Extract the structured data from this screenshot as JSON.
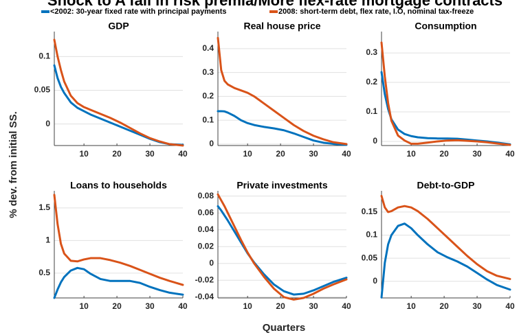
{
  "title": "Shock to A fall in risk premia/More flex-rate mortgage contracts",
  "y_label": "% dev. from initial SS.",
  "x_label": "Quarters",
  "chart_data": [
    {
      "type": "line",
      "title": "GDP",
      "x": [
        1,
        2,
        3,
        4,
        6,
        8,
        10,
        12,
        15,
        18,
        21,
        24,
        27,
        30,
        33,
        36,
        40
      ],
      "xlim": [
        1,
        40
      ],
      "xticks": [
        10,
        20,
        30,
        40
      ],
      "ylim": [
        -0.032,
        0.133
      ],
      "yticks": [
        0,
        0.05,
        0.1
      ],
      "grid": true,
      "series": [
        {
          "name": "<2002: 30-year fixed rate with principal payments",
          "color": "#0072bd",
          "values": [
            0.087,
            0.068,
            0.055,
            0.046,
            0.032,
            0.024,
            0.019,
            0.014,
            0.008,
            0.002,
            -0.004,
            -0.01,
            -0.016,
            -0.022,
            -0.027,
            -0.03,
            -0.031
          ]
        },
        {
          "name": "2008: short-term debt, flex rate, I.O, nominal tax-freeze",
          "color": "#d95319",
          "values": [
            0.125,
            0.1,
            0.08,
            0.063,
            0.042,
            0.031,
            0.025,
            0.021,
            0.015,
            0.009,
            0.002,
            -0.006,
            -0.014,
            -0.021,
            -0.026,
            -0.03,
            -0.032
          ]
        }
      ]
    },
    {
      "type": "line",
      "title": "Real house price",
      "x": [
        1,
        2,
        3,
        4,
        6,
        8,
        10,
        12,
        15,
        18,
        21,
        24,
        27,
        30,
        33,
        36,
        40
      ],
      "xlim": [
        1,
        40
      ],
      "xticks": [
        10,
        20,
        30,
        40
      ],
      "ylim": [
        -0.006,
        0.46
      ],
      "yticks": [
        0,
        0.1,
        0.2,
        0.3,
        0.4
      ],
      "grid": true,
      "series": [
        {
          "name": "<2002: 30-year fixed rate with principal payments",
          "color": "#0072bd",
          "values": [
            0.138,
            0.138,
            0.137,
            0.132,
            0.118,
            0.1,
            0.088,
            0.08,
            0.072,
            0.066,
            0.058,
            0.045,
            0.03,
            0.015,
            0.006,
            0.001,
            -0.003
          ]
        },
        {
          "name": "2008: short-term debt, flex rate, I.O, nominal tax-freeze",
          "color": "#d95319",
          "values": [
            0.445,
            0.31,
            0.265,
            0.25,
            0.235,
            0.225,
            0.215,
            0.2,
            0.17,
            0.14,
            0.11,
            0.08,
            0.055,
            0.035,
            0.02,
            0.008,
            0.0
          ]
        }
      ]
    },
    {
      "type": "line",
      "title": "Consumption",
      "x": [
        1,
        2,
        3,
        4,
        6,
        8,
        10,
        12,
        15,
        18,
        21,
        24,
        27,
        30,
        33,
        36,
        40
      ],
      "xlim": [
        1,
        40
      ],
      "xticks": [
        10,
        20,
        30,
        40
      ],
      "ylim": [
        -0.014,
        0.363
      ],
      "yticks": [
        0,
        0.1,
        0.2,
        0.3
      ],
      "grid": true,
      "series": [
        {
          "name": "<2002: 30-year fixed rate with principal payments",
          "color": "#0072bd",
          "values": [
            0.235,
            0.16,
            0.11,
            0.075,
            0.04,
            0.025,
            0.018,
            0.014,
            0.011,
            0.01,
            0.01,
            0.009,
            0.006,
            0.003,
            0.0,
            -0.004,
            -0.01
          ]
        },
        {
          "name": "2008: short-term debt, flex rate, I.O, nominal tax-freeze",
          "color": "#d95319",
          "values": [
            0.335,
            0.22,
            0.13,
            0.07,
            0.02,
            0.003,
            -0.008,
            -0.008,
            -0.004,
            0.0,
            0.003,
            0.004,
            0.002,
            0.0,
            -0.003,
            -0.007,
            -0.012
          ]
        }
      ]
    },
    {
      "type": "line",
      "title": "Loans to households",
      "x": [
        1,
        2,
        3,
        4,
        6,
        8,
        10,
        12,
        15,
        18,
        21,
        24,
        27,
        30,
        33,
        36,
        40
      ],
      "xlim": [
        1,
        40
      ],
      "xticks": [
        10,
        20,
        30,
        40
      ],
      "ylim": [
        0.12,
        1.72
      ],
      "yticks": [
        0.5,
        1,
        1.5
      ],
      "grid": true,
      "series": [
        {
          "name": "<2002: 30-year fixed rate with principal payments",
          "color": "#0072bd",
          "values": [
            0.12,
            0.25,
            0.36,
            0.44,
            0.54,
            0.58,
            0.56,
            0.49,
            0.41,
            0.38,
            0.38,
            0.38,
            0.35,
            0.29,
            0.24,
            0.2,
            0.17
          ]
        },
        {
          "name": "2008: short-term debt, flex rate, I.O, nominal tax-freeze",
          "color": "#d95319",
          "values": [
            1.7,
            1.25,
            0.95,
            0.8,
            0.69,
            0.68,
            0.71,
            0.73,
            0.73,
            0.7,
            0.66,
            0.61,
            0.55,
            0.49,
            0.43,
            0.38,
            0.32
          ]
        }
      ]
    },
    {
      "type": "line",
      "title": "Private investments",
      "x": [
        1,
        2,
        3,
        4,
        6,
        8,
        10,
        12,
        15,
        18,
        21,
        24,
        27,
        30,
        33,
        36,
        40
      ],
      "xlim": [
        1,
        40
      ],
      "xticks": [
        10,
        20,
        30,
        40
      ],
      "ylim": [
        -0.041,
        0.083
      ],
      "yticks": [
        -0.04,
        -0.02,
        0,
        0.02,
        0.04,
        0.06,
        0.08
      ],
      "grid": true,
      "series": [
        {
          "name": "<2002: 30-year fixed rate with principal payments",
          "color": "#0072bd",
          "values": [
            0.068,
            0.063,
            0.057,
            0.051,
            0.038,
            0.025,
            0.012,
            0.001,
            -0.013,
            -0.025,
            -0.033,
            -0.037,
            -0.036,
            -0.032,
            -0.027,
            -0.022,
            -0.017
          ]
        },
        {
          "name": "2008: short-term debt, flex rate, I.O, nominal tax-freeze",
          "color": "#d95319",
          "values": [
            0.082,
            0.075,
            0.068,
            0.06,
            0.044,
            0.028,
            0.013,
            0.0,
            -0.016,
            -0.03,
            -0.04,
            -0.043,
            -0.041,
            -0.036,
            -0.03,
            -0.025,
            -0.019
          ]
        }
      ]
    },
    {
      "type": "line",
      "title": "Debt-to-GDP",
      "x": [
        1,
        2,
        3,
        4,
        6,
        8,
        10,
        12,
        15,
        18,
        21,
        24,
        27,
        30,
        33,
        36,
        40
      ],
      "xlim": [
        1,
        40
      ],
      "xticks": [
        10,
        20,
        30,
        40
      ],
      "ylim": [
        -0.036,
        0.19
      ],
      "yticks": [
        0,
        0.05,
        0.1,
        0.15
      ],
      "grid": true,
      "series": [
        {
          "name": "<2002: 30-year fixed rate with principal payments",
          "color": "#0072bd",
          "values": [
            -0.035,
            0.04,
            0.08,
            0.1,
            0.12,
            0.125,
            0.115,
            0.1,
            0.08,
            0.063,
            0.052,
            0.043,
            0.032,
            0.018,
            0.004,
            -0.008,
            -0.018
          ]
        },
        {
          "name": "2008: short-term debt, flex rate, I.O, nominal tax-freeze",
          "color": "#d95319",
          "values": [
            0.185,
            0.16,
            0.15,
            0.152,
            0.16,
            0.163,
            0.16,
            0.152,
            0.135,
            0.115,
            0.095,
            0.075,
            0.055,
            0.037,
            0.022,
            0.012,
            0.005
          ]
        }
      ]
    }
  ]
}
